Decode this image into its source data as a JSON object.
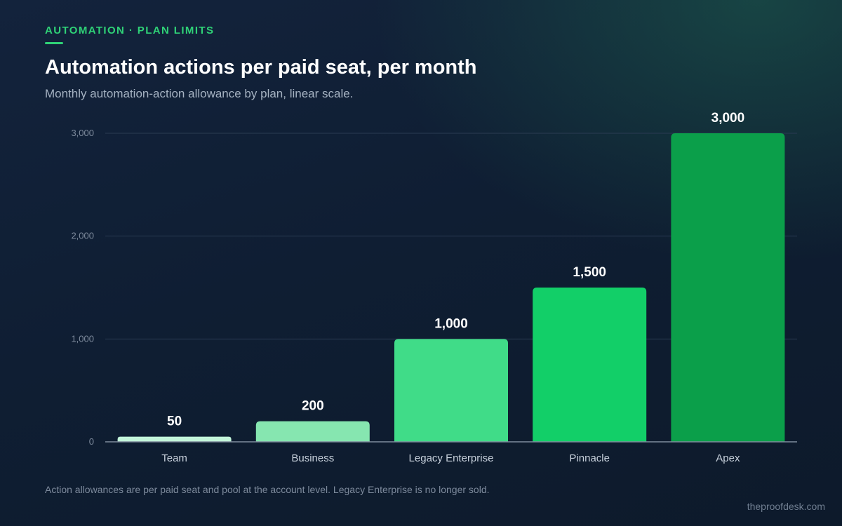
{
  "header": {
    "eyebrow": "AUTOMATION · PLAN LIMITS",
    "title": "Automation actions per paid seat, per month",
    "subtitle": "Monthly automation-action allowance by plan, linear scale."
  },
  "footer": {
    "note": "Action allowances are per paid seat and pool at the account level. Legacy Enterprise is no longer sold.",
    "credit": "theproofdesk.com"
  },
  "colors": {
    "accent": "#2fd277",
    "bars": [
      "#c3f5da",
      "#86e6b0",
      "#40dc88",
      "#12cf68",
      "#0b9f4a"
    ],
    "grid": "#2a3b52",
    "baseline": "#7f8c9d",
    "tick_label": "#7d8a9c",
    "category_label": "#c9d2dd",
    "value_label": "#ffffff"
  },
  "chart_data": {
    "type": "bar",
    "categories": [
      "Team",
      "Business",
      "Legacy Enterprise",
      "Pinnacle",
      "Apex"
    ],
    "values": [
      50,
      200,
      1000,
      1500,
      3000
    ],
    "value_labels": [
      "50",
      "200",
      "1,000",
      "1,500",
      "3,000"
    ],
    "ylim": [
      0,
      3000
    ],
    "yticks": [
      0,
      1000,
      2000,
      3000
    ],
    "ytick_labels": [
      "0",
      "1,000",
      "2,000",
      "3,000"
    ],
    "grid": true,
    "scale": "linear"
  }
}
